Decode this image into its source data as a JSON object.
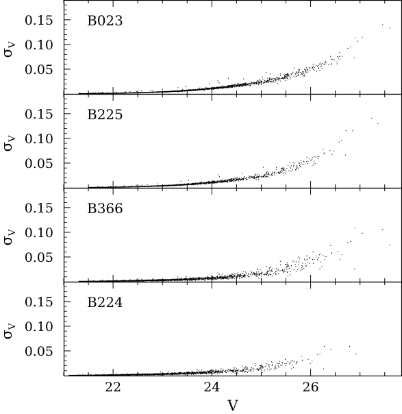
{
  "chart_data": {
    "type": "scatter",
    "x_label": "V",
    "y_label": "σ",
    "y_label_subscript": "V",
    "x_range": [
      21.0,
      27.85
    ],
    "x_ticks": [
      22,
      24,
      26
    ],
    "y_range": [
      0.0,
      0.19
    ],
    "y_ticks": [
      0.05,
      0.1,
      0.15
    ],
    "y_tick_labels": [
      "0.05",
      "0.10",
      "0.15"
    ],
    "x_tick_labels": [
      "22",
      "24",
      "26"
    ],
    "point_color": "#000000",
    "panels": [
      {
        "name": "B023",
        "mag_min": 21.3,
        "mag_max": 27.85,
        "density": 1.0,
        "curve": [
          {
            "V": 22.0,
            "sigma": 0.002
          },
          {
            "V": 24.0,
            "sigma": 0.012
          },
          {
            "V": 25.0,
            "sigma": 0.025
          },
          {
            "V": 26.0,
            "sigma": 0.05
          },
          {
            "V": 27.0,
            "sigma": 0.105
          },
          {
            "V": 27.8,
            "sigma": 0.175
          }
        ],
        "scatter_width": 0.08
      },
      {
        "name": "B225",
        "mag_min": 21.5,
        "mag_max": 27.6,
        "density": 0.9,
        "curve": [
          {
            "V": 22.0,
            "sigma": 0.002
          },
          {
            "V": 24.0,
            "sigma": 0.012
          },
          {
            "V": 25.0,
            "sigma": 0.025
          },
          {
            "V": 26.0,
            "sigma": 0.055
          },
          {
            "V": 27.0,
            "sigma": 0.12
          },
          {
            "V": 27.5,
            "sigma": 0.17
          }
        ],
        "scatter_width": 0.1
      },
      {
        "name": "B366",
        "mag_min": 21.3,
        "mag_max": 27.85,
        "density": 1.7,
        "curve": [
          {
            "V": 22.0,
            "sigma": 0.002
          },
          {
            "V": 24.0,
            "sigma": 0.008
          },
          {
            "V": 25.0,
            "sigma": 0.018
          },
          {
            "V": 26.0,
            "sigma": 0.04
          },
          {
            "V": 27.0,
            "sigma": 0.08
          },
          {
            "V": 27.8,
            "sigma": 0.13
          }
        ],
        "scatter_width": 0.22
      },
      {
        "name": "B224",
        "mag_min": 21.1,
        "mag_max": 27.15,
        "density": 1.2,
        "curve": [
          {
            "V": 22.0,
            "sigma": 0.002
          },
          {
            "V": 24.0,
            "sigma": 0.008
          },
          {
            "V": 25.0,
            "sigma": 0.016
          },
          {
            "V": 26.0,
            "sigma": 0.033
          },
          {
            "V": 26.8,
            "sigma": 0.06
          },
          {
            "V": 27.1,
            "sigma": 0.085
          }
        ],
        "scatter_width": 0.22
      }
    ]
  }
}
